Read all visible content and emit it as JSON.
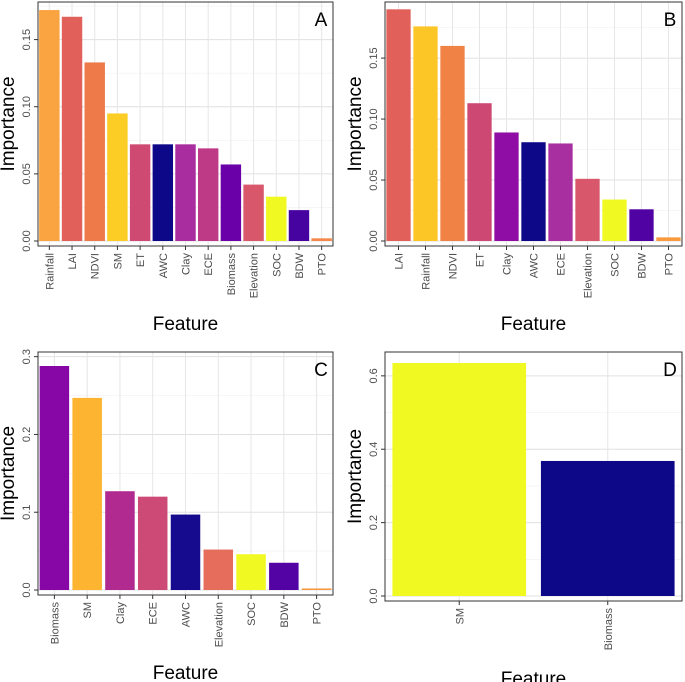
{
  "chart_data": [
    {
      "type": "bar",
      "panel_label": "A",
      "xlabel": "Feature",
      "ylabel": "Importance",
      "ylim": [
        0,
        0.178
      ],
      "yticks": [
        0.0,
        0.05,
        0.1,
        0.15
      ],
      "ytick_labels": [
        "0.00",
        "0.05",
        "0.10",
        "0.15"
      ],
      "categories": [
        "Rainfall",
        "LAI",
        "NDVI",
        "SM",
        "ET",
        "AWC",
        "Clay",
        "ECE",
        "Biomass",
        "Elevation",
        "SOC",
        "BDW",
        "PTO"
      ],
      "values": [
        0.172,
        0.167,
        0.133,
        0.095,
        0.072,
        0.072,
        0.072,
        0.069,
        0.057,
        0.042,
        0.033,
        0.023,
        0.002
      ],
      "colors": [
        "#F9A440",
        "#E2605A",
        "#EE7A4A",
        "#FCCE25",
        "#CF4A72",
        "#0D0887",
        "#A92D9E",
        "#BE3A86",
        "#6A00A8",
        "#D8576B",
        "#F0F921",
        "#47039F",
        "#F48849"
      ]
    },
    {
      "type": "bar",
      "panel_label": "B",
      "xlabel": "Feature",
      "ylabel": "Importance",
      "ylim": [
        0,
        0.196
      ],
      "yticks": [
        0.0,
        0.05,
        0.1,
        0.15
      ],
      "ytick_labels": [
        "0.00",
        "0.05",
        "0.10",
        "0.15"
      ],
      "categories": [
        "LAI",
        "Rainfall",
        "NDVI",
        "ET",
        "Clay",
        "AWC",
        "ECE",
        "Elevation",
        "SOC",
        "BDW",
        "PTO"
      ],
      "values": [
        0.19,
        0.176,
        0.16,
        0.113,
        0.089,
        0.081,
        0.08,
        0.051,
        0.034,
        0.026,
        0.003
      ],
      "colors": [
        "#E2605A",
        "#FCC626",
        "#F08246",
        "#CE4874",
        "#8F0DA4",
        "#0D0887",
        "#A72FA0",
        "#D8576B",
        "#F0F921",
        "#5102A3",
        "#F99A3E"
      ]
    },
    {
      "type": "bar",
      "panel_label": "C",
      "xlabel": "Feature",
      "ylabel": "Importance",
      "ylim": [
        0,
        0.306
      ],
      "yticks": [
        0.0,
        0.1,
        0.2,
        0.3
      ],
      "ytick_labels": [
        "0.0",
        "0.1",
        "0.2",
        "0.3"
      ],
      "categories": [
        "Biomass",
        "SM",
        "Clay",
        "ECE",
        "AWC",
        "Elevation",
        "SOC",
        "BDW",
        "PTO"
      ],
      "values": [
        0.288,
        0.247,
        0.127,
        0.12,
        0.097,
        0.052,
        0.046,
        0.035,
        0.002
      ],
      "colors": [
        "#8707A6",
        "#FDB431",
        "#B12A90",
        "#CD4A76",
        "#160B8E",
        "#E66C5C",
        "#F0F921",
        "#5302A3",
        "#F79843"
      ]
    },
    {
      "type": "bar",
      "panel_label": "D",
      "xlabel": "Feature",
      "ylabel": "Importance",
      "ylim": [
        0,
        0.665
      ],
      "yticks": [
        0.0,
        0.2,
        0.4,
        0.6
      ],
      "ytick_labels": [
        "0.0",
        "0.2",
        "0.4",
        "0.6"
      ],
      "categories": [
        "SM",
        "Biomass"
      ],
      "values": [
        0.635,
        0.368
      ],
      "colors": [
        "#F0F921",
        "#0D0887"
      ]
    }
  ]
}
